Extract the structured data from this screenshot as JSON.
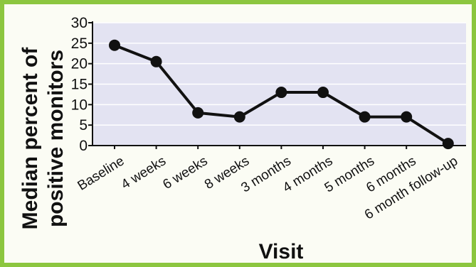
{
  "chart_data": {
    "type": "line",
    "categories": [
      "Baseline",
      "4 weeks",
      "6 weeks",
      "8 weeks",
      "3 months",
      "4 months",
      "5 months",
      "6 months",
      "6 month follow-up"
    ],
    "values": [
      24.5,
      20.5,
      8,
      7,
      13,
      13,
      7,
      7,
      0.5
    ],
    "yticks": [
      0,
      5,
      10,
      15,
      20,
      25,
      30
    ],
    "ylim": [
      0,
      30
    ],
    "xlabel": "Visit",
    "ylabel_lines": [
      "Median percent of",
      "positive monitors"
    ],
    "grid": true,
    "colors": {
      "plot_background": "#e3e3f2",
      "gridline": "#ffffff",
      "line": "#111111",
      "marker": "#111111",
      "frame_border": "#8cc63f"
    }
  }
}
